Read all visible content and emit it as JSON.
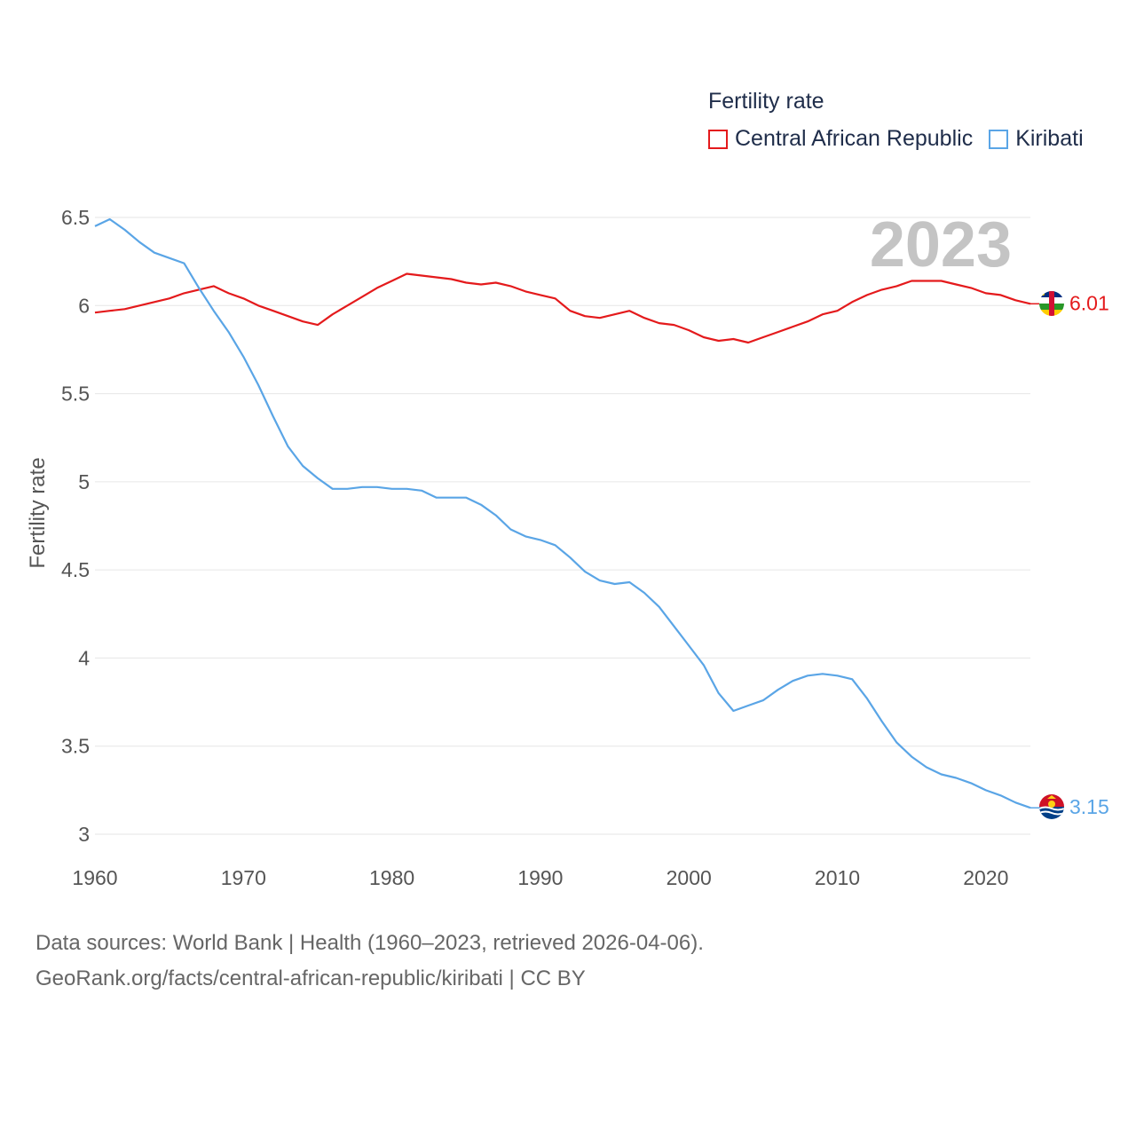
{
  "legend": {
    "title": "Fertility rate",
    "items": [
      {
        "name": "Central African Republic",
        "color": "#e41a1c"
      },
      {
        "name": "Kiribati",
        "color": "#5aa5e6"
      }
    ]
  },
  "footer": {
    "line1": "Data sources: World Bank | Health (1960–2023, retrieved 2026-04-06).",
    "line2": "GeoRank.org/facts/central-african-republic/kiribati | CC BY"
  },
  "chart_data": {
    "type": "line",
    "title": "Fertility rate",
    "ylabel": "Fertility rate",
    "xlabel": "",
    "year_label": "2023",
    "xlim": [
      1960,
      2023
    ],
    "ylim": [
      3,
      6.5
    ],
    "x_ticks": [
      "1960",
      "1970",
      "1980",
      "1990",
      "2000",
      "2010",
      "2020"
    ],
    "y_ticks": [
      "3",
      "3.5",
      "4",
      "4.5",
      "5",
      "5.5",
      "6",
      "6.5"
    ],
    "grid": true,
    "legend_position": "top-right",
    "x": [
      1960,
      1961,
      1962,
      1963,
      1964,
      1965,
      1966,
      1967,
      1968,
      1969,
      1970,
      1971,
      1972,
      1973,
      1974,
      1975,
      1976,
      1977,
      1978,
      1979,
      1980,
      1981,
      1982,
      1983,
      1984,
      1985,
      1986,
      1987,
      1988,
      1989,
      1990,
      1991,
      1992,
      1993,
      1994,
      1995,
      1996,
      1997,
      1998,
      1999,
      2000,
      2001,
      2002,
      2003,
      2004,
      2005,
      2006,
      2007,
      2008,
      2009,
      2010,
      2011,
      2012,
      2013,
      2014,
      2015,
      2016,
      2017,
      2018,
      2019,
      2020,
      2021,
      2022,
      2023
    ],
    "series": [
      {
        "name": "Central African Republic",
        "color": "#e41a1c",
        "end_label": "6.01",
        "values": [
          5.96,
          5.97,
          5.98,
          6.0,
          6.02,
          6.04,
          6.07,
          6.09,
          6.11,
          6.07,
          6.04,
          6.0,
          5.97,
          5.94,
          5.91,
          5.89,
          5.95,
          6.0,
          6.05,
          6.1,
          6.14,
          6.18,
          6.17,
          6.16,
          6.15,
          6.13,
          6.12,
          6.13,
          6.11,
          6.08,
          6.06,
          6.04,
          5.97,
          5.94,
          5.93,
          5.95,
          5.97,
          5.93,
          5.9,
          5.89,
          5.86,
          5.82,
          5.8,
          5.81,
          5.79,
          5.82,
          5.85,
          5.88,
          5.91,
          5.95,
          5.97,
          6.02,
          6.06,
          6.09,
          6.11,
          6.14,
          6.14,
          6.14,
          6.12,
          6.1,
          6.07,
          6.06,
          6.03,
          6.01
        ]
      },
      {
        "name": "Kiribati",
        "color": "#5aa5e6",
        "end_label": "3.15",
        "values": [
          6.45,
          6.49,
          6.43,
          6.36,
          6.3,
          6.27,
          6.24,
          6.1,
          5.97,
          5.85,
          5.71,
          5.55,
          5.37,
          5.2,
          5.09,
          5.02,
          4.96,
          4.96,
          4.97,
          4.97,
          4.96,
          4.96,
          4.95,
          4.91,
          4.91,
          4.91,
          4.87,
          4.81,
          4.73,
          4.69,
          4.67,
          4.64,
          4.57,
          4.49,
          4.44,
          4.42,
          4.43,
          4.37,
          4.29,
          4.18,
          4.07,
          3.96,
          3.8,
          3.7,
          3.73,
          3.76,
          3.82,
          3.87,
          3.9,
          3.91,
          3.9,
          3.88,
          3.77,
          3.64,
          3.52,
          3.44,
          3.38,
          3.34,
          3.32,
          3.29,
          3.25,
          3.22,
          3.18,
          3.15
        ]
      }
    ]
  }
}
